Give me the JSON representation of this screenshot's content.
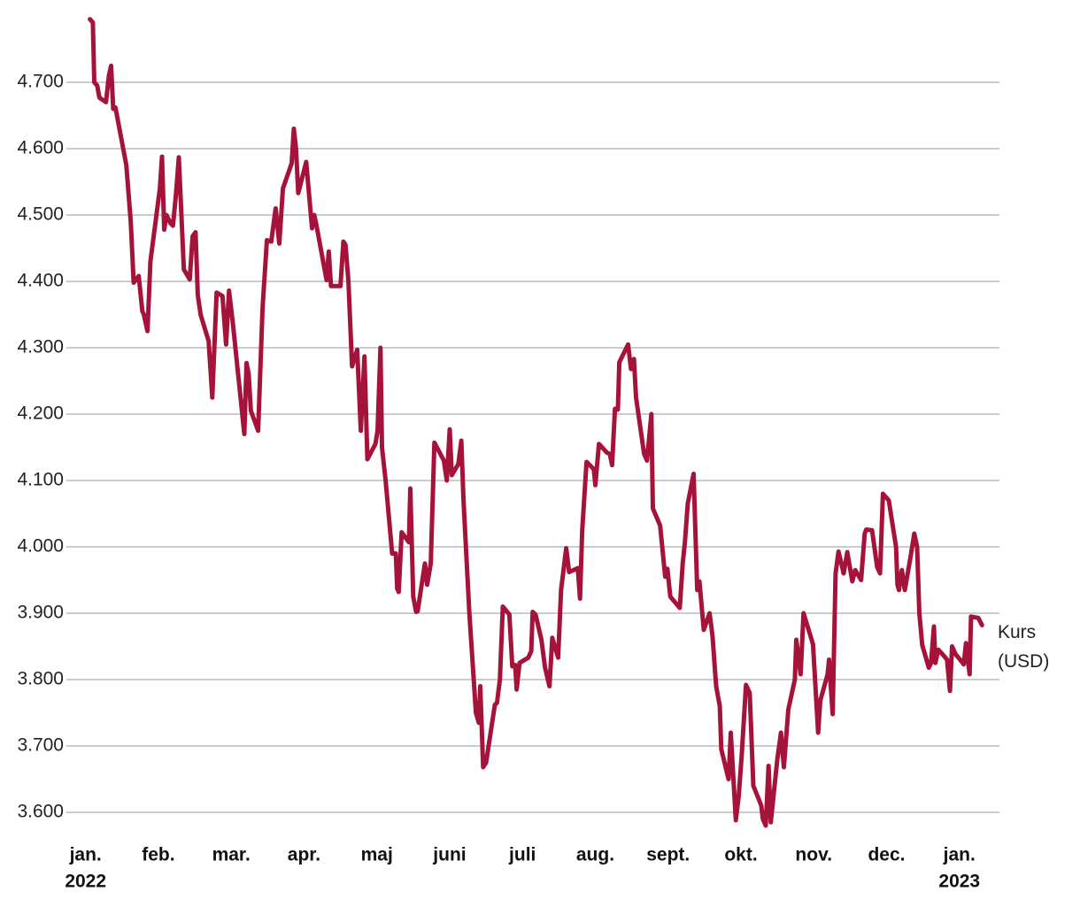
{
  "chart_data": {
    "type": "line",
    "x": [
      0.06,
      0.1,
      0.12,
      0.16,
      0.19,
      0.28,
      0.32,
      0.35,
      0.38,
      0.41,
      0.56,
      0.62,
      0.66,
      0.73,
      0.78,
      0.8,
      0.85,
      0.89,
      1.02,
      1.05,
      1.08,
      1.11,
      1.17,
      1.2,
      1.24,
      1.28,
      1.35,
      1.43,
      1.47,
      1.51,
      1.54,
      1.58,
      1.69,
      1.74,
      1.8,
      1.88,
      1.93,
      1.97,
      2.02,
      2.18,
      2.21,
      2.24,
      2.27,
      2.37,
      2.43,
      2.49,
      2.55,
      2.61,
      2.66,
      2.71,
      2.83,
      2.86,
      2.89,
      2.92,
      3.03,
      3.11,
      3.14,
      3.17,
      3.31,
      3.34,
      3.37,
      3.5,
      3.54,
      3.57,
      3.61,
      3.66,
      3.73,
      3.78,
      3.83,
      3.87,
      3.98,
      4.01,
      4.05,
      4.07,
      4.12,
      4.21,
      4.26,
      4.28,
      4.3,
      4.34,
      4.44,
      4.46,
      4.5,
      4.54,
      4.56,
      4.66,
      4.69,
      4.74,
      4.79,
      4.92,
      4.96,
      5.0,
      5.03,
      5.12,
      5.16,
      5.19,
      5.27,
      5.36,
      5.4,
      5.42,
      5.46,
      5.5,
      5.62,
      5.65,
      5.69,
      5.73,
      5.82,
      5.86,
      5.9,
      5.92,
      5.96,
      6.08,
      6.12,
      6.14,
      6.18,
      6.26,
      6.31,
      6.37,
      6.41,
      6.49,
      6.53,
      6.6,
      6.64,
      6.76,
      6.79,
      6.82,
      6.88,
      6.98,
      7.0,
      7.05,
      7.16,
      7.2,
      7.23,
      7.27,
      7.31,
      7.33,
      7.45,
      7.49,
      7.53,
      7.56,
      7.67,
      7.71,
      7.77,
      7.79,
      7.89,
      7.96,
      7.99,
      8.03,
      8.16,
      8.2,
      8.23,
      8.27,
      8.35,
      8.4,
      8.43,
      8.49,
      8.57,
      8.61,
      8.66,
      8.71,
      8.73,
      8.83,
      8.86,
      8.93,
      8.97,
      9.01,
      9.07,
      9.12,
      9.17,
      9.28,
      9.3,
      9.34,
      9.38,
      9.41,
      9.5,
      9.55,
      9.59,
      9.65,
      9.74,
      9.76,
      9.82,
      9.86,
      9.93,
      9.99,
      10.06,
      10.09,
      10.19,
      10.21,
      10.26,
      10.3,
      10.34,
      10.41,
      10.46,
      10.53,
      10.57,
      10.65,
      10.7,
      10.72,
      10.8,
      10.87,
      10.91,
      10.95,
      11.03,
      11.13,
      11.15,
      11.17,
      11.21,
      11.25,
      11.33,
      11.38,
      11.42,
      11.45,
      11.49,
      11.58,
      11.61,
      11.65,
      11.67,
      11.71,
      11.77,
      11.83,
      11.87,
      11.9,
      11.95,
      12.01,
      12.06,
      12.09,
      12.14,
      12.16,
      12.26,
      12.31
    ],
    "series": [
      {
        "name": "Kurs (USD)",
        "color": "#a6133a",
        "values": [
          4.795,
          4.79,
          4.7,
          4.695,
          4.677,
          4.67,
          4.71,
          4.725,
          4.66,
          4.662,
          4.575,
          4.49,
          4.398,
          4.408,
          4.355,
          4.35,
          4.325,
          4.43,
          4.54,
          4.588,
          4.478,
          4.5,
          4.487,
          4.484,
          4.53,
          4.587,
          4.418,
          4.403,
          4.468,
          4.474,
          4.38,
          4.35,
          4.31,
          4.225,
          4.383,
          4.378,
          4.305,
          4.386,
          4.34,
          4.17,
          4.277,
          4.26,
          4.205,
          4.175,
          4.36,
          4.462,
          4.46,
          4.51,
          4.457,
          4.54,
          4.578,
          4.63,
          4.6,
          4.533,
          4.58,
          4.48,
          4.5,
          4.485,
          4.402,
          4.445,
          4.393,
          4.393,
          4.46,
          4.455,
          4.4,
          4.272,
          4.297,
          4.175,
          4.287,
          4.132,
          4.155,
          4.175,
          4.3,
          4.15,
          4.1,
          3.99,
          3.99,
          3.937,
          3.932,
          4.022,
          4.007,
          4.088,
          3.925,
          3.902,
          3.903,
          3.975,
          3.943,
          3.975,
          4.157,
          4.13,
          4.1,
          4.177,
          4.108,
          4.125,
          4.16,
          4.07,
          3.9,
          3.75,
          3.735,
          3.79,
          3.668,
          3.675,
          3.762,
          3.765,
          3.8,
          3.91,
          3.898,
          3.82,
          3.822,
          3.785,
          3.825,
          3.833,
          3.843,
          3.902,
          3.898,
          3.86,
          3.818,
          3.79,
          3.863,
          3.833,
          3.935,
          3.998,
          3.962,
          3.968,
          3.922,
          4.025,
          4.128,
          4.117,
          4.093,
          4.155,
          4.142,
          4.14,
          4.123,
          4.208,
          4.207,
          4.278,
          4.305,
          4.268,
          4.283,
          4.225,
          4.14,
          4.13,
          4.2,
          4.058,
          4.032,
          3.955,
          3.967,
          3.925,
          3.908,
          3.975,
          4.007,
          4.065,
          4.11,
          3.935,
          3.948,
          3.875,
          3.9,
          3.865,
          3.79,
          3.76,
          3.695,
          3.65,
          3.72,
          3.588,
          3.625,
          3.685,
          3.792,
          3.78,
          3.64,
          3.61,
          3.59,
          3.58,
          3.67,
          3.585,
          3.68,
          3.72,
          3.668,
          3.755,
          3.8,
          3.86,
          3.808,
          3.9,
          3.875,
          3.853,
          3.72,
          3.768,
          3.808,
          3.83,
          3.748,
          3.96,
          3.993,
          3.96,
          3.992,
          3.948,
          3.965,
          3.95,
          4.02,
          4.026,
          4.025,
          3.97,
          3.96,
          4.08,
          4.07,
          4.0,
          3.943,
          3.935,
          3.965,
          3.935,
          3.985,
          4.02,
          4.0,
          3.9,
          3.852,
          3.818,
          3.825,
          3.88,
          3.825,
          3.845,
          3.838,
          3.83,
          3.783,
          3.85,
          3.838,
          3.83,
          3.823,
          3.855,
          3.808,
          3.895,
          3.893,
          3.882
        ]
      }
    ],
    "xlim": [
      -0.3,
      12.55
    ],
    "xticks": [
      {
        "value": 0,
        "label": "jan."
      },
      {
        "value": 1,
        "label": "feb."
      },
      {
        "value": 2,
        "label": "mar."
      },
      {
        "value": 3,
        "label": "apr."
      },
      {
        "value": 4,
        "label": "maj"
      },
      {
        "value": 5,
        "label": "juni"
      },
      {
        "value": 6,
        "label": "juli"
      },
      {
        "value": 7,
        "label": "aug."
      },
      {
        "value": 8,
        "label": "sept."
      },
      {
        "value": 9,
        "label": "okt."
      },
      {
        "value": 10,
        "label": "nov."
      },
      {
        "value": 11,
        "label": "dec."
      },
      {
        "value": 12,
        "label": "jan."
      }
    ],
    "x_sublabels": [
      {
        "value": 0,
        "label": "2022"
      },
      {
        "value": 12,
        "label": "2023"
      }
    ],
    "ylim": [
      3.56,
      4.8
    ],
    "yticks": [
      {
        "value": 3.6,
        "label": "3.600"
      },
      {
        "value": 3.7,
        "label": "3.700"
      },
      {
        "value": 3.8,
        "label": "3.800"
      },
      {
        "value": 3.9,
        "label": "3.900"
      },
      {
        "value": 4.0,
        "label": "4.000"
      },
      {
        "value": 4.1,
        "label": "4.100"
      },
      {
        "value": 4.2,
        "label": "4.200"
      },
      {
        "value": 4.3,
        "label": "4.300"
      },
      {
        "value": 4.4,
        "label": "4.400"
      },
      {
        "value": 4.5,
        "label": "4.500"
      },
      {
        "value": 4.6,
        "label": "4.600"
      },
      {
        "value": 4.7,
        "label": "4.700"
      }
    ],
    "grid": true
  }
}
